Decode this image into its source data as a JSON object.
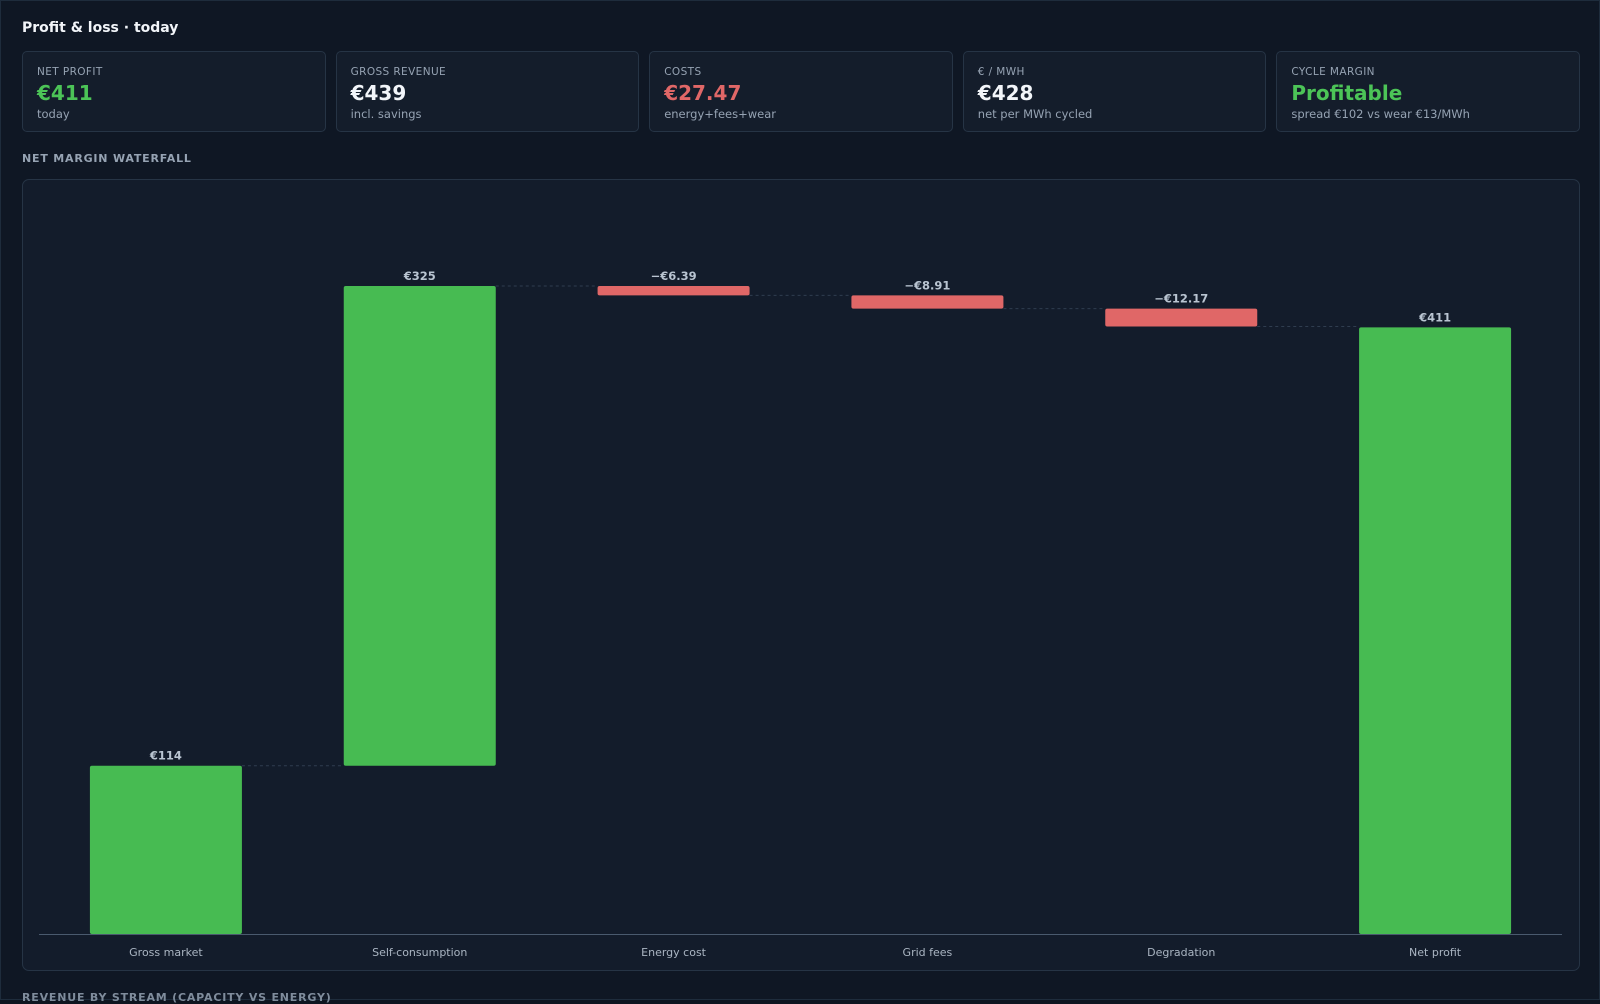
{
  "page": {
    "title": "Profit & loss · today",
    "waterfall_title": "NET MARGIN WATERFALL",
    "next_section_title": "REVENUE BY STREAM (CAPACITY VS ENERGY)"
  },
  "kpis": [
    {
      "label": "NET PROFIT",
      "value": "€411",
      "sub": "today",
      "color": "#4cc457"
    },
    {
      "label": "GROSS REVENUE",
      "value": "€439",
      "sub": "incl. savings",
      "color": "#f2f5f9"
    },
    {
      "label": "COSTS",
      "value": "€27.47",
      "sub": "energy+fees+wear",
      "color": "#e06767"
    },
    {
      "label": "€ / MWH",
      "value": "€428",
      "sub": "net per MWh cycled",
      "color": "#f2f5f9"
    },
    {
      "label": "CYCLE MARGIN",
      "value": "Profitable",
      "sub": "spread €102 vs wear €13/MWh",
      "color": "#4cc457"
    }
  ],
  "colors": {
    "positive": "#47bb52",
    "negative": "#e06767",
    "connector": "#2f3d4f",
    "axis": "#4a5a6e"
  },
  "chart_data": {
    "type": "bar",
    "subtype": "waterfall",
    "categories": [
      "Gross market",
      "Self-consumption",
      "Energy cost",
      "Grid fees",
      "Degradation",
      "Net profit"
    ],
    "values": [
      114,
      325,
      -6.39,
      -8.91,
      -12.17,
      411
    ],
    "kinds": [
      "increase",
      "increase",
      "decrease",
      "decrease",
      "decrease",
      "total"
    ],
    "value_labels": [
      "€114",
      "€325",
      "−€6.39",
      "−€8.91",
      "−€12.17",
      "€411"
    ],
    "ylim": [
      0,
      439
    ],
    "grid": false,
    "legend": "none"
  }
}
